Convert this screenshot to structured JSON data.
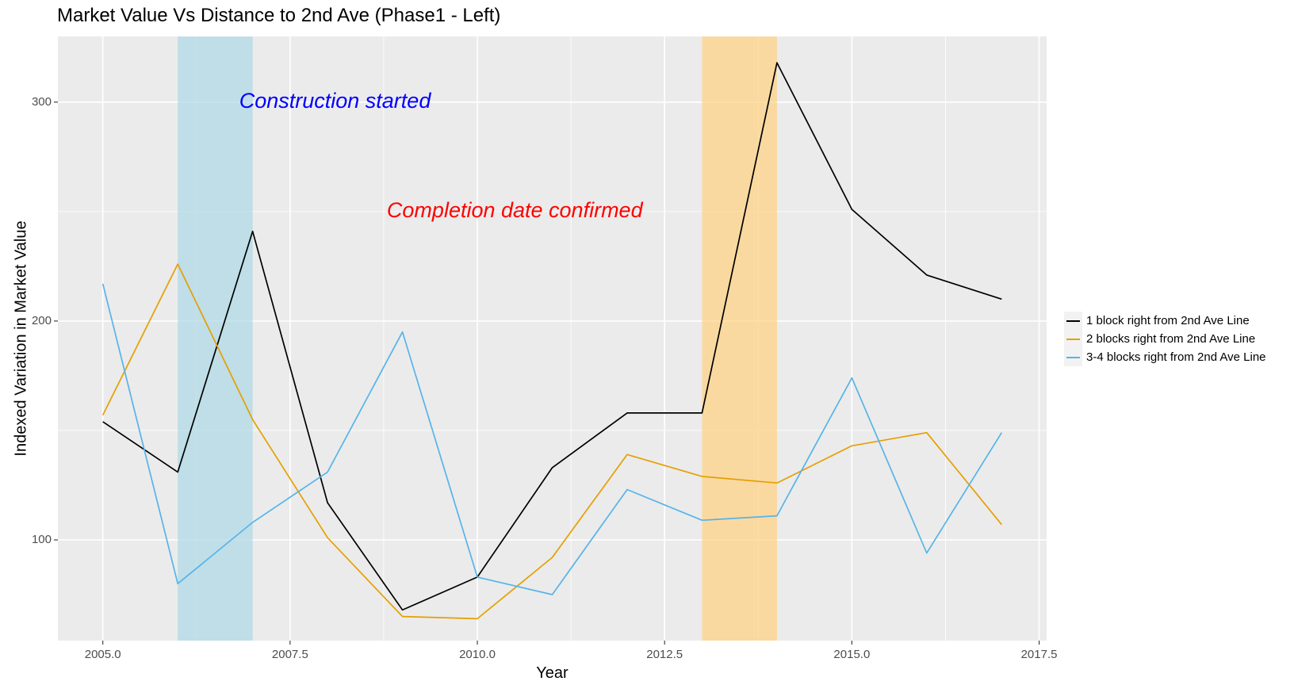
{
  "chart_data": {
    "type": "line",
    "title": "Market Value Vs Distance to 2nd Ave (Phase1 - Left)",
    "xlabel": "Year",
    "ylabel": "Indexed Variation in Market Value",
    "xlim": [
      2004.4,
      2017.6
    ],
    "ylim": [
      54,
      330
    ],
    "x_ticks": [
      2005.0,
      2007.5,
      2010.0,
      2012.5,
      2015.0,
      2017.5
    ],
    "x_tick_labels": [
      "2005.0",
      "2007.5",
      "2010.0",
      "2012.5",
      "2015.0",
      "2017.5"
    ],
    "y_ticks": [
      100,
      200,
      300
    ],
    "y_tick_labels": [
      "100",
      "200",
      "300"
    ],
    "grid": true,
    "legend_position": "right",
    "x": [
      2005,
      2006,
      2007,
      2008,
      2009,
      2010,
      2011,
      2012,
      2013,
      2014,
      2015,
      2016,
      2017
    ],
    "series": [
      {
        "name": "1 block right from 2nd Ave Line",
        "color": "#000000",
        "values": [
          154,
          131,
          241,
          117,
          68,
          83,
          133,
          158,
          158,
          318,
          251,
          221,
          210
        ]
      },
      {
        "name": "2 blocks right from 2nd Ave Line",
        "color": "#E69F00",
        "values": [
          157,
          226,
          155,
          101,
          65,
          64,
          92,
          139,
          129,
          126,
          143,
          149,
          107
        ]
      },
      {
        "name": "3-4 blocks right from 2nd Ave Line",
        "color": "#56B4E9",
        "values": [
          217,
          80,
          108,
          131,
          195,
          83,
          75,
          123,
          109,
          111,
          174,
          94,
          149
        ]
      }
    ],
    "shaded_regions": [
      {
        "x_start": 2006,
        "x_end": 2007,
        "color": "#ADD8E6"
      },
      {
        "x_start": 2013,
        "x_end": 2014,
        "color": "#FFD280"
      }
    ],
    "annotations": [
      {
        "text": "Construction started",
        "x": 2008.1,
        "y": 300,
        "color": "#0000FF"
      },
      {
        "text": "Completion date confirmed",
        "x": 2010.5,
        "y": 250,
        "color": "#FF0000"
      }
    ],
    "colors": {
      "panel_background": "#EBEBEB",
      "gridline": "#FFFFFF"
    }
  }
}
